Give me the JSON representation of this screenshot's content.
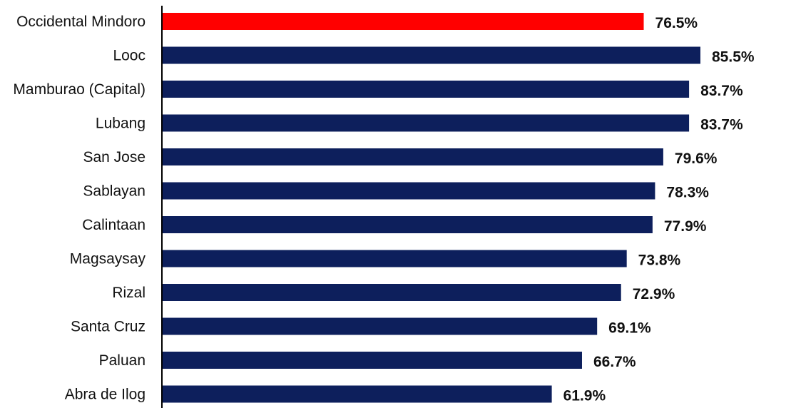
{
  "chart_data": {
    "type": "bar",
    "orientation": "horizontal",
    "title": "",
    "xlabel": "",
    "ylabel": "",
    "xlim": [
      0,
      100
    ],
    "grid": false,
    "legend": "none",
    "categories": [
      "Occidental Mindoro",
      "Looc",
      "Mamburao (Capital)",
      "Lubang",
      "San Jose",
      "Sablayan",
      "Calintaan",
      "Magsaysay",
      "Rizal",
      "Santa Cruz",
      "Paluan",
      "Abra de Ilog"
    ],
    "values": [
      76.5,
      85.5,
      83.7,
      83.7,
      79.6,
      78.3,
      77.9,
      73.8,
      72.9,
      69.1,
      66.7,
      61.9
    ],
    "value_labels": [
      "76.5%",
      "85.5%",
      "83.7%",
      "83.7%",
      "79.6%",
      "78.3%",
      "77.9%",
      "73.8%",
      "72.9%",
      "69.1%",
      "66.7%",
      "61.9%"
    ],
    "highlight_index": 0,
    "colors": {
      "bar": "#0d1f5c",
      "highlight": "#ff0000",
      "axis": "#000000"
    }
  }
}
